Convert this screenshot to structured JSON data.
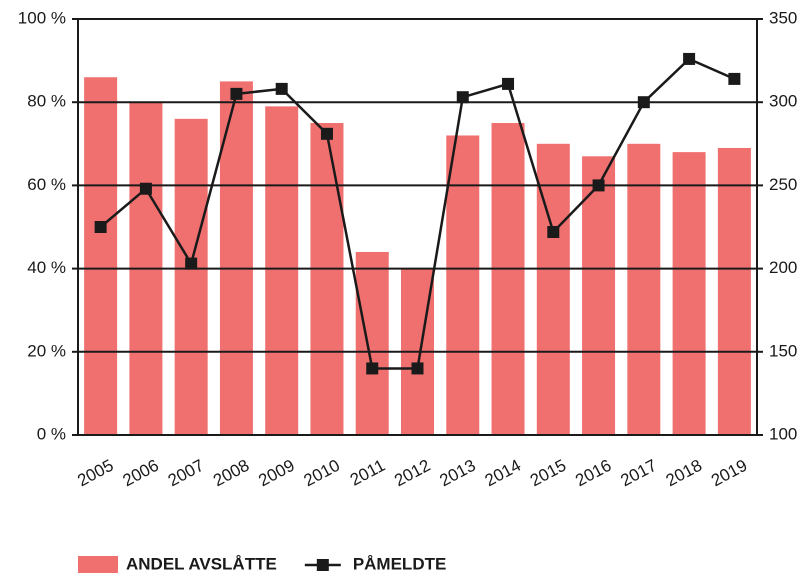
{
  "chart_data": {
    "type": "bar-line",
    "categories": [
      "2005",
      "2006",
      "2007",
      "2008",
      "2009",
      "2010",
      "2011",
      "2012",
      "2013",
      "2014",
      "2015",
      "2016",
      "2017",
      "2018",
      "2019"
    ],
    "series": [
      {
        "name": "ANDEL AVSLÅTTE",
        "type": "bar",
        "color": "#f07070",
        "values": [
          86,
          80,
          76,
          85,
          79,
          75,
          44,
          40,
          72,
          75,
          70,
          67,
          70,
          68,
          69
        ]
      },
      {
        "name": "PÅMELDTE",
        "type": "line",
        "axis": "y2",
        "color": "#1a1a1a",
        "values": [
          225,
          248,
          203,
          305,
          308,
          281,
          140,
          140,
          303,
          311,
          222,
          250,
          300,
          326,
          314
        ]
      }
    ],
    "ylim": [
      0,
      100
    ],
    "yticks": [
      {
        "value": 0,
        "label": "0 %"
      },
      {
        "value": 20,
        "label": "20 %"
      },
      {
        "value": 40,
        "label": "40 %"
      },
      {
        "value": 60,
        "label": "60 %"
      },
      {
        "value": 80,
        "label": "80 %"
      },
      {
        "value": 100,
        "label": "100 %"
      }
    ],
    "y2lim": [
      100,
      350
    ],
    "y2ticks": [
      100,
      150,
      200,
      250,
      300,
      350
    ],
    "grid": true,
    "legend": "bottom"
  }
}
